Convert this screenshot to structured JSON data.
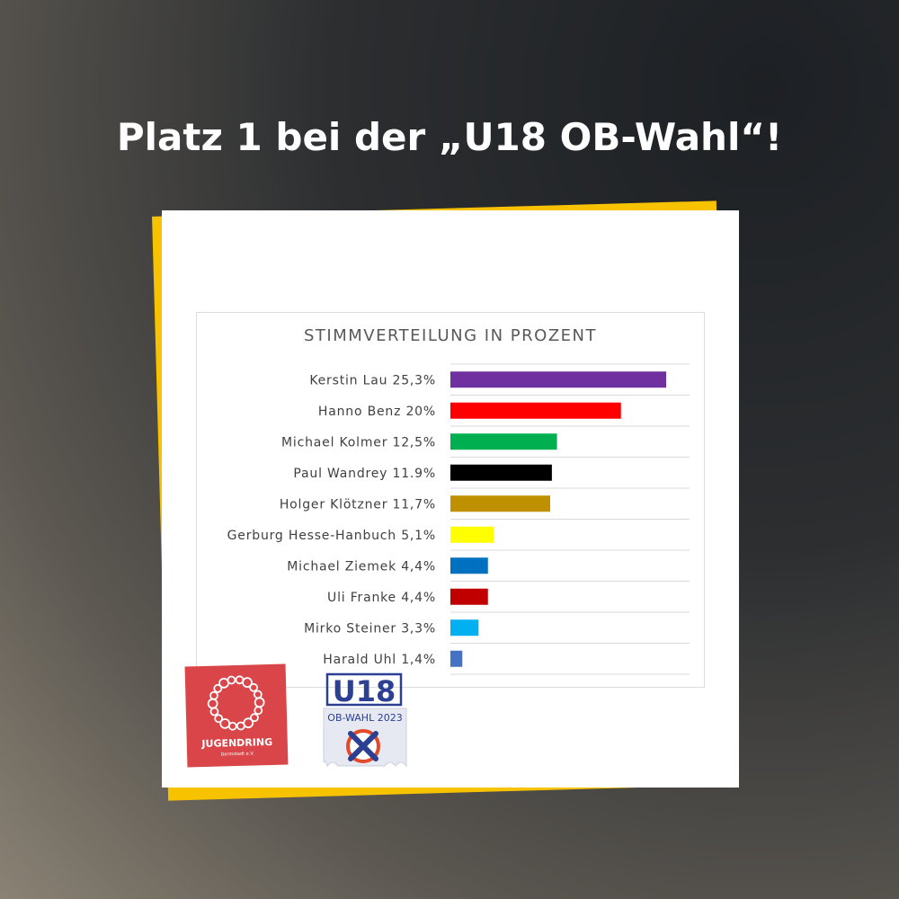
{
  "headline": "Platz 1 bei der „U18 OB-Wahl“!",
  "logos": {
    "jugendring": {
      "name": "JUGENDRING",
      "subtitle": "Darmstadt e.V."
    },
    "u18": {
      "name": "U18",
      "subtitle": "OB-WAHL 2023"
    }
  },
  "chart_data": {
    "type": "bar",
    "orientation": "horizontal",
    "title": "STIMMVERTEILUNG IN PROZENT",
    "xlabel": "",
    "ylabel": "",
    "xlim": [
      0,
      30
    ],
    "grid": true,
    "legend": "none",
    "categories": [
      "Kerstin Lau 25,3%",
      "Hanno Benz 20%",
      "Michael Kolmer  12,5%",
      "Paul Wandrey 11.9%",
      "Holger Klötzner 11,7%",
      "Gerburg Hesse-Hanbuch 5,1%",
      "Michael Ziemek 4,4%",
      "Uli Franke 4,4%",
      "Mirko Steiner 3,3%",
      "Harald Uhl 1,4%"
    ],
    "values": [
      25.3,
      20,
      12.5,
      11.9,
      11.7,
      5.1,
      4.4,
      4.4,
      3.3,
      1.4
    ],
    "colors": [
      "#7030a0",
      "#ff0000",
      "#00b050",
      "#000000",
      "#bf9000",
      "#ffff00",
      "#0070c0",
      "#c00000",
      "#00b0f0",
      "#4472c4"
    ],
    "gridline_color": "#d9d9d9",
    "label_color": "#404040"
  }
}
